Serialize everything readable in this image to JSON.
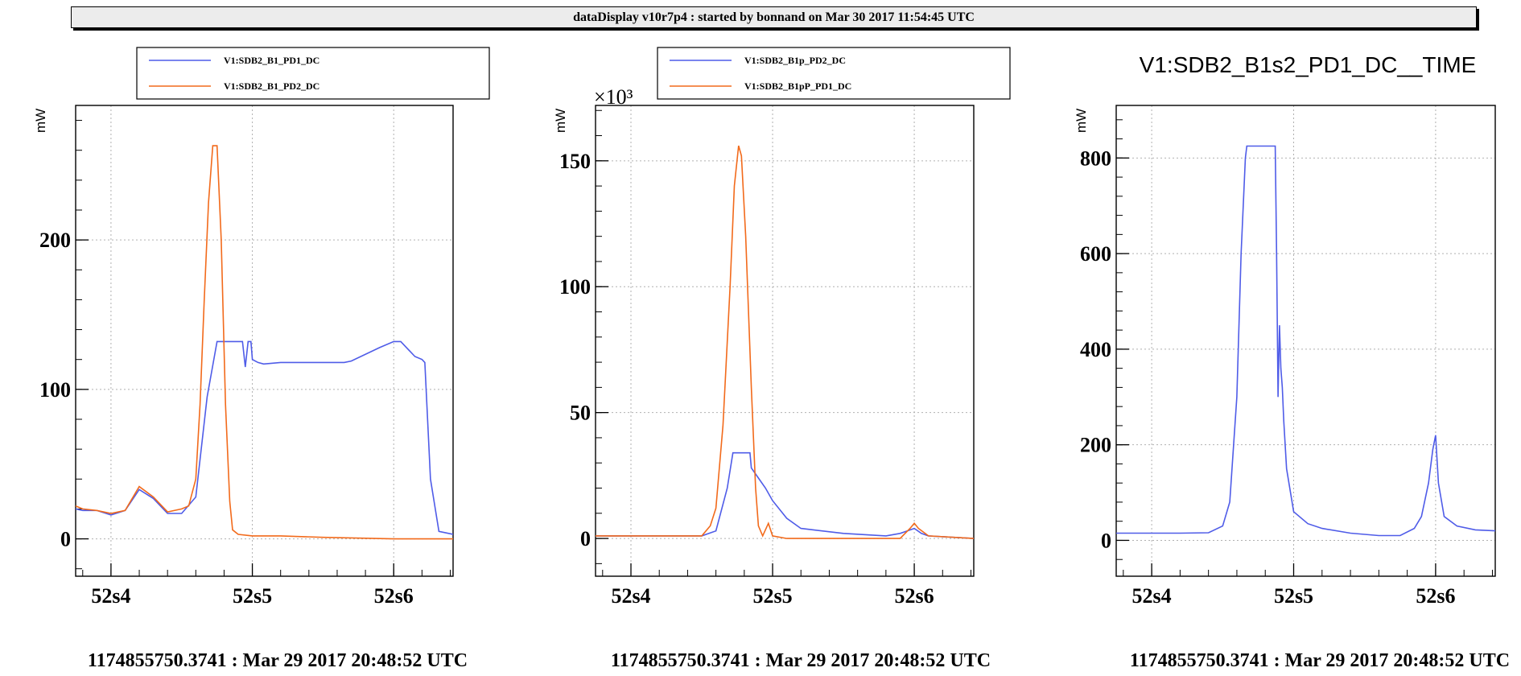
{
  "header": {
    "title": "dataDisplay v10r7p4 : started by bonnand on Mar 30 2017 11:54:45 UTC"
  },
  "footers": [
    "1174855750.3741 : Mar 29 2017 20:48:52 UTC",
    "1174855750.3741 : Mar 29 2017 20:48:52 UTC",
    "1174855750.3741 : Mar 29 2017 20:48:52 UTC"
  ],
  "colors": {
    "blue": "#4f5ce8",
    "orange": "#f26a1b"
  },
  "chart_data": [
    {
      "type": "line",
      "title": "",
      "ylabel": "mW",
      "xlabel": "",
      "x_ticks": [
        52.4,
        52.5,
        52.6
      ],
      "x_tick_labels": [
        "52s4",
        "52s5",
        "52s6"
      ],
      "y_ticks": [
        0,
        100,
        200
      ],
      "y_tick_labels": [
        "0",
        "100",
        "200"
      ],
      "xlim": [
        52.375,
        52.642
      ],
      "ylim": [
        -25,
        290
      ],
      "grid": true,
      "legend": "top",
      "series": [
        {
          "name": "V1:SDB2_B1_PD1_DC",
          "color": "blue",
          "x": [
            52.375,
            52.38,
            52.39,
            52.4,
            52.41,
            52.42,
            52.43,
            52.44,
            52.45,
            52.46,
            52.468,
            52.475,
            52.48,
            52.484,
            52.486,
            52.493,
            52.495,
            52.497,
            52.499,
            52.5,
            52.504,
            52.508,
            52.52,
            52.54,
            52.55,
            52.565,
            52.57,
            52.59,
            52.6,
            52.605,
            52.615,
            52.62,
            52.622,
            52.626,
            52.632,
            52.642
          ],
          "y": [
            20,
            19,
            19,
            16,
            19,
            33,
            27,
            17,
            17,
            28,
            95,
            132,
            132,
            132,
            132,
            132,
            115,
            132,
            132,
            120,
            118,
            117,
            118,
            118,
            118,
            118,
            119,
            128,
            132,
            132,
            122,
            120,
            118,
            40,
            5,
            3
          ]
        },
        {
          "name": "V1:SDB2_B1_PD2_DC",
          "color": "orange",
          "x": [
            52.375,
            52.38,
            52.39,
            52.4,
            52.41,
            52.42,
            52.43,
            52.44,
            52.45,
            52.455,
            52.46,
            52.463,
            52.466,
            52.469,
            52.472,
            52.475,
            52.478,
            52.481,
            52.484,
            52.486,
            52.49,
            52.5,
            52.52,
            52.55,
            52.6,
            52.642
          ],
          "y": [
            22,
            20,
            19,
            17,
            19,
            35,
            28,
            18,
            20,
            22,
            40,
            90,
            160,
            225,
            263,
            263,
            200,
            90,
            25,
            6,
            3,
            2,
            2,
            1,
            0,
            0
          ]
        }
      ]
    },
    {
      "type": "line",
      "title": "",
      "ylabel": "mW",
      "xlabel": "",
      "y_multiplier": "×10³",
      "x_ticks": [
        52.4,
        52.5,
        52.6
      ],
      "x_tick_labels": [
        "52s4",
        "52s5",
        "52s6"
      ],
      "y_ticks": [
        0,
        50,
        100,
        150
      ],
      "y_tick_labels": [
        "0",
        "50",
        "100",
        "150"
      ],
      "xlim": [
        52.375,
        52.642
      ],
      "ylim": [
        -15,
        172
      ],
      "grid": true,
      "legend": "top",
      "series": [
        {
          "name": "V1:SDB2_B1p_PD2_DC",
          "color": "blue",
          "x": [
            52.375,
            52.43,
            52.45,
            52.46,
            52.468,
            52.472,
            52.476,
            52.478,
            52.48,
            52.484,
            52.485,
            52.49,
            52.495,
            52.5,
            52.51,
            52.52,
            52.55,
            52.58,
            52.59,
            52.595,
            52.6,
            52.605,
            52.61,
            52.642
          ],
          "y": [
            1,
            1,
            1,
            3,
            20,
            34,
            34,
            34,
            34,
            34,
            28,
            24,
            20,
            15,
            8,
            4,
            2,
            1,
            2,
            3,
            4,
            2,
            1,
            0
          ]
        },
        {
          "name": "V1:SDB2_B1pP_PD1_DC",
          "color": "orange",
          "x": [
            52.375,
            52.43,
            52.45,
            52.456,
            52.46,
            52.465,
            52.47,
            52.473,
            52.476,
            52.478,
            52.481,
            52.485,
            52.488,
            52.49,
            52.493,
            52.497,
            52.5,
            52.51,
            52.55,
            52.59,
            52.597,
            52.6,
            52.603,
            52.61,
            52.642
          ],
          "y": [
            1,
            1,
            1,
            5,
            12,
            45,
            100,
            140,
            156,
            152,
            120,
            60,
            20,
            5,
            1,
            6,
            1,
            0,
            0,
            0,
            4,
            6,
            4,
            1,
            0
          ]
        }
      ]
    },
    {
      "type": "line",
      "title": "V1:SDB2_B1s2_PD1_DC__TIME",
      "ylabel": "mW",
      "xlabel": "",
      "x_ticks": [
        52.4,
        52.5,
        52.6
      ],
      "x_tick_labels": [
        "52s4",
        "52s5",
        "52s6"
      ],
      "y_ticks": [
        0,
        200,
        400,
        600,
        800
      ],
      "y_tick_labels": [
        "0",
        "200",
        "400",
        "600",
        "800"
      ],
      "xlim": [
        52.375,
        52.642
      ],
      "ylim": [
        -75,
        910
      ],
      "grid": true,
      "legend": "none",
      "series": [
        {
          "name": "",
          "color": "blue",
          "x": [
            52.375,
            52.42,
            52.44,
            52.45,
            52.455,
            52.46,
            52.463,
            52.466,
            52.467,
            52.468,
            52.47,
            52.475,
            52.48,
            52.485,
            52.487,
            52.488,
            52.489,
            52.49,
            52.491,
            52.492,
            52.493,
            52.495,
            52.5,
            52.51,
            52.52,
            52.54,
            52.56,
            52.575,
            52.585,
            52.59,
            52.595,
            52.598,
            52.6,
            52.602,
            52.606,
            52.615,
            52.628,
            52.642
          ],
          "y": [
            15,
            15,
            16,
            30,
            80,
            300,
            600,
            800,
            825,
            825,
            825,
            825,
            825,
            825,
            825,
            600,
            300,
            450,
            360,
            320,
            250,
            150,
            60,
            35,
            25,
            15,
            10,
            10,
            25,
            50,
            120,
            190,
            220,
            120,
            50,
            30,
            22,
            20
          ]
        }
      ]
    }
  ]
}
